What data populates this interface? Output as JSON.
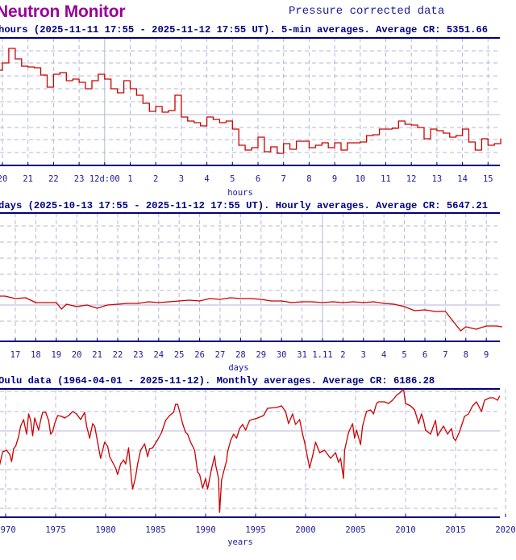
{
  "header": {
    "brand": "Neutron Monitor",
    "subtitle": "Pressure corrected data"
  },
  "colors": {
    "line": "#cc0000",
    "frame": "#000080",
    "grid": "#b4b4dc",
    "brand": "#990099",
    "text": "#000080"
  },
  "chart_data": [
    {
      "type": "line",
      "title": "hours (2025-11-11 17:55 - 2025-11-12 17:55 UT). 5-min averages. Average CR: 5351.66",
      "xlabel": "hours",
      "ylabel": "",
      "style": "step",
      "grid": true,
      "ylim": [
        5292,
        5450
      ],
      "tick_labels": [
        "20",
        "21",
        "22",
        "23",
        "12d:00",
        "1",
        "2",
        "3",
        "4",
        "5",
        "6",
        "7",
        "8",
        "9",
        "10",
        "11",
        "12",
        "13",
        "14",
        "15"
      ],
      "points": [
        [
          "11-11 19:45",
          5410
        ],
        [
          "11-11 20:00",
          5419
        ],
        [
          "11-11 20:15",
          5437
        ],
        [
          "11-11 20:30",
          5424
        ],
        [
          "11-11 20:45",
          5415
        ],
        [
          "11-11 21:00",
          5414
        ],
        [
          "11-11 21:15",
          5413
        ],
        [
          "11-11 21:30",
          5404
        ],
        [
          "11-11 21:45",
          5389
        ],
        [
          "11-11 22:00",
          5405
        ],
        [
          "11-11 22:15",
          5407
        ],
        [
          "11-11 22:30",
          5397
        ],
        [
          "11-11 22:45",
          5399
        ],
        [
          "11-11 23:00",
          5395
        ],
        [
          "11-11 23:15",
          5387
        ],
        [
          "11-11 23:30",
          5397
        ],
        [
          "11-11 23:45",
          5405
        ],
        [
          "11-12 00:00",
          5399
        ],
        [
          "11-12 00:15",
          5387
        ],
        [
          "11-12 00:30",
          5382
        ],
        [
          "11-12 00:45",
          5397
        ],
        [
          "11-12 01:00",
          5387
        ],
        [
          "11-12 01:15",
          5379
        ],
        [
          "11-12 01:30",
          5369
        ],
        [
          "11-12 01:45",
          5359
        ],
        [
          "11-12 02:00",
          5365
        ],
        [
          "11-12 02:15",
          5358
        ],
        [
          "11-12 02:30",
          5360
        ],
        [
          "11-12 02:45",
          5379
        ],
        [
          "11-12 03:00",
          5352
        ],
        [
          "11-12 03:15",
          5347
        ],
        [
          "11-12 03:30",
          5345
        ],
        [
          "11-12 03:45",
          5341
        ],
        [
          "11-12 04:00",
          5352
        ],
        [
          "11-12 04:15",
          5349
        ],
        [
          "11-12 04:30",
          5345
        ],
        [
          "11-12 04:45",
          5347
        ],
        [
          "11-12 05:00",
          5337
        ],
        [
          "11-12 05:15",
          5317
        ],
        [
          "11-12 05:30",
          5311
        ],
        [
          "11-12 05:45",
          5314
        ],
        [
          "11-12 06:00",
          5327
        ],
        [
          "11-12 06:15",
          5309
        ],
        [
          "11-12 06:30",
          5315
        ],
        [
          "11-12 06:45",
          5307
        ],
        [
          "11-12 07:00",
          5319
        ],
        [
          "11-12 07:15",
          5312
        ],
        [
          "11-12 07:30",
          5322
        ],
        [
          "11-12 07:45",
          5322
        ],
        [
          "11-12 08:00",
          5314
        ],
        [
          "11-12 08:15",
          5317
        ],
        [
          "11-12 08:30",
          5320
        ],
        [
          "11-12 08:45",
          5314
        ],
        [
          "11-12 09:00",
          5320
        ],
        [
          "11-12 09:15",
          5311
        ],
        [
          "11-12 09:30",
          5320
        ],
        [
          "11-12 09:45",
          5320
        ],
        [
          "11-12 10:00",
          5321
        ],
        [
          "11-12 10:15",
          5329
        ],
        [
          "11-12 10:30",
          5330
        ],
        [
          "11-12 10:45",
          5337
        ],
        [
          "11-12 11:00",
          5337
        ],
        [
          "11-12 11:15",
          5338
        ],
        [
          "11-12 11:30",
          5347
        ],
        [
          "11-12 11:45",
          5343
        ],
        [
          "11-12 12:00",
          5342
        ],
        [
          "11-12 12:15",
          5339
        ],
        [
          "11-12 12:30",
          5325
        ],
        [
          "11-12 12:45",
          5337
        ],
        [
          "11-12 13:00",
          5335
        ],
        [
          "11-12 13:15",
          5332
        ],
        [
          "11-12 13:30",
          5327
        ],
        [
          "11-12 13:45",
          5329
        ],
        [
          "11-12 14:00",
          5337
        ],
        [
          "11-12 14:15",
          5321
        ],
        [
          "11-12 14:30",
          5311
        ],
        [
          "11-12 14:45",
          5325
        ],
        [
          "11-12 15:00",
          5317
        ],
        [
          "11-12 15:15",
          5319
        ],
        [
          "11-12 15:30",
          5325
        ]
      ]
    },
    {
      "type": "line",
      "title": "days (2025-10-13 17:55 - 2025-11-12 17:55 UT). Hourly averages. Average CR: 5647.21",
      "xlabel": "days",
      "ylabel": "",
      "grid": true,
      "ylim": [
        5551,
        5869
      ],
      "tick_labels": [
        "17",
        "18",
        "19",
        "20",
        "21",
        "22",
        "23",
        "24",
        "25",
        "26",
        "27",
        "28",
        "29",
        "30",
        "31",
        "1.11",
        "2",
        "3",
        "4",
        "5",
        "6",
        "7",
        "8",
        "9"
      ],
      "points": [
        [
          "10-16 06:00",
          5663
        ],
        [
          "10-16 12:00",
          5663
        ],
        [
          "10-17 00:00",
          5657
        ],
        [
          "10-17 12:00",
          5659
        ],
        [
          "10-18 00:00",
          5647
        ],
        [
          "10-18 12:00",
          5647
        ],
        [
          "10-19 00:00",
          5647
        ],
        [
          "10-19 06:00",
          5631
        ],
        [
          "10-19 12:00",
          5643
        ],
        [
          "10-20 00:00",
          5637
        ],
        [
          "10-20 12:00",
          5641
        ],
        [
          "10-21 00:00",
          5633
        ],
        [
          "10-21 12:00",
          5641
        ],
        [
          "10-22 00:00",
          5643
        ],
        [
          "10-22 12:00",
          5645
        ],
        [
          "10-23 00:00",
          5645
        ],
        [
          "10-23 12:00",
          5649
        ],
        [
          "10-24 00:00",
          5647
        ],
        [
          "10-24 12:00",
          5649
        ],
        [
          "10-25 00:00",
          5651
        ],
        [
          "10-25 12:00",
          5653
        ],
        [
          "10-26 00:00",
          5651
        ],
        [
          "10-26 12:00",
          5657
        ],
        [
          "10-27 00:00",
          5655
        ],
        [
          "10-27 12:00",
          5659
        ],
        [
          "10-28 00:00",
          5657
        ],
        [
          "10-28 12:00",
          5657
        ],
        [
          "10-29 00:00",
          5655
        ],
        [
          "10-29 12:00",
          5651
        ],
        [
          "10-30 00:00",
          5651
        ],
        [
          "10-30 12:00",
          5647
        ],
        [
          "10-31 00:00",
          5649
        ],
        [
          "10-31 12:00",
          5649
        ],
        [
          "11-01 00:00",
          5647
        ],
        [
          "11-01 12:00",
          5649
        ],
        [
          "11-02 00:00",
          5647
        ],
        [
          "11-02 12:00",
          5649
        ],
        [
          "11-03 00:00",
          5647
        ],
        [
          "11-03 12:00",
          5649
        ],
        [
          "11-04 00:00",
          5645
        ],
        [
          "11-04 12:00",
          5643
        ],
        [
          "11-05 00:00",
          5637
        ],
        [
          "11-05 12:00",
          5627
        ],
        [
          "11-06 00:00",
          5629
        ],
        [
          "11-06 12:00",
          5625
        ],
        [
          "11-07 00:00",
          5625
        ],
        [
          "11-07 12:00",
          5593
        ],
        [
          "11-07 18:00",
          5577
        ],
        [
          "11-08 00:00",
          5587
        ],
        [
          "11-08 12:00",
          5581
        ],
        [
          "11-09 00:00",
          5589
        ],
        [
          "11-09 12:00",
          5589
        ],
        [
          "11-09 18:00",
          5587
        ]
      ]
    },
    {
      "type": "line",
      "title": "Oulu data (1964-04-01 - 2025-11-12). Monthly averages. Average CR: 6186.28",
      "xlabel": "years",
      "ylabel": "",
      "grid": true,
      "ylim": [
        5338,
        6610
      ],
      "tick_labels": [
        "1970",
        "1975",
        "1980",
        "1985",
        "1990",
        "1995",
        "2000",
        "2005",
        "2010",
        "2015",
        "2020"
      ],
      "points": [
        [
          1969.4,
          5858
        ],
        [
          1969.7,
          5986
        ],
        [
          1970.1,
          6002
        ],
        [
          1970.4,
          5962
        ],
        [
          1970.6,
          5890
        ],
        [
          1970.8,
          6018
        ],
        [
          1971.0,
          6042
        ],
        [
          1971.3,
          6138
        ],
        [
          1971.5,
          6242
        ],
        [
          1971.8,
          6306
        ],
        [
          1972.1,
          6162
        ],
        [
          1972.3,
          6362
        ],
        [
          1972.5,
          6298
        ],
        [
          1972.7,
          6146
        ],
        [
          1972.9,
          6322
        ],
        [
          1973.3,
          6202
        ],
        [
          1973.5,
          6298
        ],
        [
          1973.7,
          6378
        ],
        [
          1974.0,
          6378
        ],
        [
          1974.3,
          6298
        ],
        [
          1974.5,
          6162
        ],
        [
          1974.7,
          6186
        ],
        [
          1974.9,
          6266
        ],
        [
          1975.2,
          6346
        ],
        [
          1975.6,
          6338
        ],
        [
          1975.9,
          6322
        ],
        [
          1976.3,
          6346
        ],
        [
          1976.7,
          6386
        ],
        [
          1977.1,
          6362
        ],
        [
          1977.5,
          6306
        ],
        [
          1977.9,
          6378
        ],
        [
          1978.1,
          6242
        ],
        [
          1978.4,
          6122
        ],
        [
          1978.7,
          6266
        ],
        [
          1978.9,
          6242
        ],
        [
          1979.2,
          6082
        ],
        [
          1979.5,
          5922
        ],
        [
          1979.9,
          6082
        ],
        [
          1980.2,
          6042
        ],
        [
          1980.4,
          5938
        ],
        [
          1980.7,
          5882
        ],
        [
          1981.0,
          5826
        ],
        [
          1981.2,
          5762
        ],
        [
          1981.5,
          5866
        ],
        [
          1981.8,
          5906
        ],
        [
          1982.0,
          5866
        ],
        [
          1982.3,
          6026
        ],
        [
          1982.6,
          5706
        ],
        [
          1982.7,
          5618
        ],
        [
          1983.0,
          5738
        ],
        [
          1983.2,
          5866
        ],
        [
          1983.5,
          6002
        ],
        [
          1983.9,
          6066
        ],
        [
          1984.2,
          5938
        ],
        [
          1984.4,
          6018
        ],
        [
          1984.7,
          6026
        ],
        [
          1985.2,
          6106
        ],
        [
          1985.6,
          6178
        ],
        [
          1986.0,
          6298
        ],
        [
          1986.4,
          6346
        ],
        [
          1986.8,
          6378
        ],
        [
          1987.0,
          6458
        ],
        [
          1987.2,
          6458
        ],
        [
          1987.4,
          6386
        ],
        [
          1987.7,
          6266
        ],
        [
          1988.0,
          6178
        ],
        [
          1988.2,
          6162
        ],
        [
          1988.5,
          6082
        ],
        [
          1988.9,
          6002
        ],
        [
          1989.2,
          5786
        ],
        [
          1989.4,
          5762
        ],
        [
          1989.7,
          5626
        ],
        [
          1990.0,
          5722
        ],
        [
          1990.2,
          5618
        ],
        [
          1990.6,
          5818
        ],
        [
          1990.9,
          5946
        ],
        [
          1991.0,
          5858
        ],
        [
          1991.3,
          5722
        ],
        [
          1991.4,
          5386
        ],
        [
          1991.6,
          5706
        ],
        [
          1991.8,
          5786
        ],
        [
          1992.1,
          5898
        ],
        [
          1992.2,
          5986
        ],
        [
          1992.5,
          6098
        ],
        [
          1992.8,
          6162
        ],
        [
          1993.1,
          6122
        ],
        [
          1993.4,
          6218
        ],
        [
          1993.7,
          6258
        ],
        [
          1994.0,
          6202
        ],
        [
          1994.4,
          6298
        ],
        [
          1995.2,
          6322
        ],
        [
          1995.8,
          6346
        ],
        [
          1996.2,
          6418
        ],
        [
          1997.1,
          6426
        ],
        [
          1997.6,
          6442
        ],
        [
          1998.0,
          6386
        ],
        [
          1998.3,
          6266
        ],
        [
          1998.7,
          6362
        ],
        [
          1999.0,
          6258
        ],
        [
          1999.4,
          6306
        ],
        [
          1999.7,
          6162
        ],
        [
          1999.9,
          6082
        ],
        [
          2000.4,
          5826
        ],
        [
          2000.7,
          5946
        ],
        [
          2001.0,
          6082
        ],
        [
          2001.4,
          5978
        ],
        [
          2001.9,
          6002
        ],
        [
          2002.5,
          5922
        ],
        [
          2003.0,
          5978
        ],
        [
          2003.3,
          5882
        ],
        [
          2003.5,
          5922
        ],
        [
          2003.8,
          5722
        ],
        [
          2003.9,
          6002
        ],
        [
          2004.3,
          6178
        ],
        [
          2004.7,
          6266
        ],
        [
          2004.9,
          6122
        ],
        [
          2005.1,
          6202
        ],
        [
          2005.5,
          6058
        ],
        [
          2005.7,
          6242
        ],
        [
          2006.1,
          6386
        ],
        [
          2006.5,
          6402
        ],
        [
          2006.8,
          6362
        ],
        [
          2007.1,
          6466
        ],
        [
          2007.3,
          6482
        ],
        [
          2007.9,
          6482
        ],
        [
          2008.3,
          6466
        ],
        [
          2008.7,
          6498
        ],
        [
          2009.1,
          6546
        ],
        [
          2009.5,
          6578
        ],
        [
          2009.8,
          6610
        ],
        [
          2010.0,
          6466
        ],
        [
          2010.5,
          6442
        ],
        [
          2010.9,
          6402
        ],
        [
          2011.2,
          6306
        ],
        [
          2011.3,
          6266
        ],
        [
          2011.6,
          6362
        ],
        [
          2011.8,
          6298
        ],
        [
          2012.0,
          6202
        ],
        [
          2012.3,
          6178
        ],
        [
          2012.5,
          6162
        ],
        [
          2013.0,
          6298
        ],
        [
          2013.2,
          6146
        ],
        [
          2013.8,
          6242
        ],
        [
          2014.2,
          6162
        ],
        [
          2014.6,
          6218
        ],
        [
          2014.8,
          6122
        ],
        [
          2015.0,
          6098
        ],
        [
          2015.4,
          6186
        ],
        [
          2015.9,
          6338
        ],
        [
          2016.3,
          6362
        ],
        [
          2016.7,
          6442
        ],
        [
          2017.1,
          6482
        ],
        [
          2017.6,
          6386
        ],
        [
          2017.9,
          6498
        ],
        [
          2018.4,
          6522
        ],
        [
          2018.8,
          6522
        ],
        [
          2019.2,
          6498
        ],
        [
          2019.4,
          6538
        ]
      ]
    }
  ]
}
